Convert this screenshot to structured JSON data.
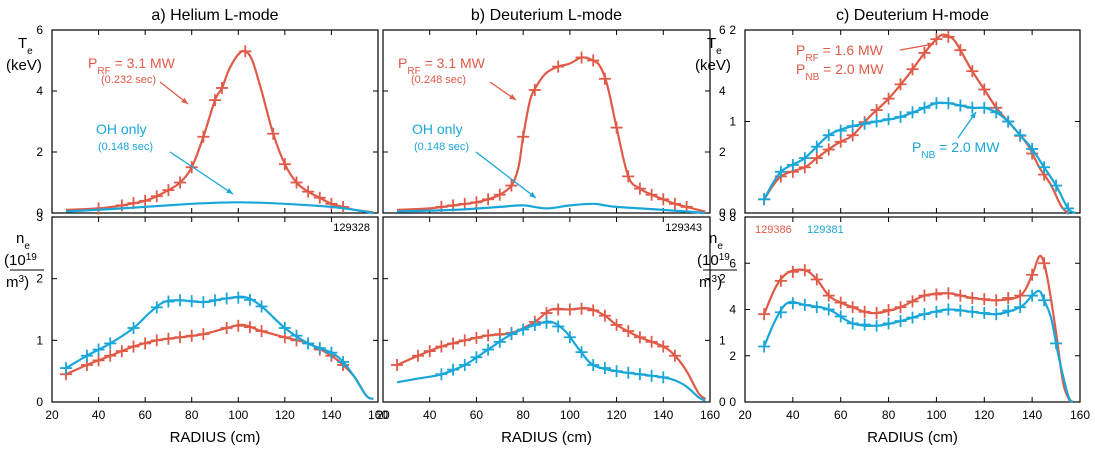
{
  "figure": {
    "xlabel": "RADIUS (cm)",
    "xticks": [
      "20",
      "40",
      "60",
      "80",
      "100",
      "120",
      "140",
      "160"
    ],
    "colors": {
      "red": "#e05a48",
      "blue": "#19a6d8",
      "axis": "#000000"
    }
  },
  "chart_data": [
    {
      "panel": "a-top",
      "type": "line",
      "title": "a)  Helium L-mode",
      "ylabel": [
        "T",
        "e",
        "(keV)"
      ],
      "xlim": [
        20,
        160
      ],
      "ylim": [
        0,
        6
      ],
      "yticks": [
        "0",
        "2",
        "4",
        "6"
      ],
      "annotations": {
        "rf": "P",
        "rf_sub": "RF",
        "rf_val": " = 3.1 MW",
        "rf_time": "(0.232 sec)",
        "oh": "OH only",
        "oh_time": "(0.148 sec)"
      },
      "series": [
        {
          "color": "red",
          "x": [
            26,
            40,
            50,
            60,
            65,
            70,
            75,
            80,
            85,
            90,
            93,
            96,
            100,
            103,
            106,
            110,
            115,
            120,
            125,
            130,
            135,
            140,
            145,
            150,
            155,
            158
          ],
          "y": [
            0.1,
            0.15,
            0.25,
            0.4,
            0.55,
            0.75,
            1.0,
            1.5,
            2.5,
            3.7,
            4.1,
            4.7,
            5.2,
            5.3,
            5.0,
            4.0,
            2.6,
            1.6,
            1.0,
            0.7,
            0.5,
            0.3,
            0.2,
            0.1,
            0.05,
            0.02
          ],
          "markers": [
            40,
            50,
            55,
            60,
            65,
            70,
            75,
            80,
            85,
            90,
            93,
            103,
            115,
            120,
            125,
            130,
            135,
            140,
            145
          ]
        },
        {
          "color": "blue",
          "x": [
            26,
            50,
            80,
            100,
            120,
            140,
            150,
            155,
            158
          ],
          "y": [
            0.05,
            0.15,
            0.3,
            0.35,
            0.3,
            0.2,
            0.1,
            0.04,
            0.0
          ],
          "markers": []
        }
      ]
    },
    {
      "panel": "a-bottom",
      "type": "line",
      "xlim": [
        20,
        160
      ],
      "ylim": [
        0,
        3
      ],
      "yticks": [
        "0",
        "1",
        "2",
        "3"
      ],
      "shot": "129328",
      "ylabel": [
        "n",
        "e",
        "(10",
        "19",
        "m",
        "3",
        ")"
      ],
      "series": [
        {
          "color": "red",
          "x": [
            26,
            35,
            45,
            55,
            65,
            75,
            85,
            95,
            102,
            110,
            120,
            130,
            140,
            145,
            150,
            155,
            158
          ],
          "y": [
            0.45,
            0.6,
            0.75,
            0.9,
            1.0,
            1.05,
            1.1,
            1.2,
            1.25,
            1.15,
            1.05,
            0.95,
            0.75,
            0.6,
            0.4,
            0.1,
            0.05
          ],
          "markers": [
            26,
            35,
            40,
            45,
            50,
            55,
            60,
            65,
            70,
            75,
            80,
            85,
            95,
            100,
            105,
            110,
            120,
            125,
            130,
            135,
            140,
            145
          ]
        },
        {
          "color": "blue",
          "x": [
            26,
            35,
            45,
            55,
            62,
            68,
            75,
            85,
            95,
            103,
            110,
            120,
            130,
            140,
            145,
            150,
            155,
            158
          ],
          "y": [
            0.55,
            0.75,
            0.95,
            1.2,
            1.45,
            1.62,
            1.65,
            1.62,
            1.68,
            1.7,
            1.55,
            1.2,
            0.95,
            0.8,
            0.65,
            0.4,
            0.1,
            0.05
          ],
          "markers": [
            26,
            35,
            40,
            45,
            55,
            65,
            70,
            75,
            80,
            85,
            90,
            95,
            100,
            105,
            110,
            120,
            125,
            130,
            135,
            140,
            145
          ]
        }
      ]
    },
    {
      "panel": "b-top",
      "type": "line",
      "title": "b)  Deuterium L-mode",
      "xlim": [
        20,
        160
      ],
      "ylim": [
        0,
        6
      ],
      "yticks": [
        "0",
        "2",
        "4",
        "6"
      ],
      "annotations": {
        "rf": "P",
        "rf_sub": "RF",
        "rf_val": " = 3.1 MW",
        "rf_time": "(0.248 sec)",
        "oh": "OH only",
        "oh_time": "(0.148 sec)"
      },
      "series": [
        {
          "color": "red",
          "x": [
            26,
            40,
            50,
            60,
            65,
            70,
            75,
            78,
            80,
            83,
            86,
            90,
            95,
            100,
            105,
            110,
            113,
            116,
            120,
            125,
            130,
            135,
            140,
            145,
            150,
            155,
            158
          ],
          "y": [
            0.1,
            0.15,
            0.25,
            0.35,
            0.45,
            0.6,
            0.9,
            1.5,
            2.5,
            3.7,
            4.2,
            4.6,
            4.8,
            4.9,
            5.1,
            5.0,
            4.8,
            4.2,
            2.8,
            1.2,
            0.8,
            0.6,
            0.45,
            0.3,
            0.2,
            0.1,
            0.05
          ],
          "markers": [
            45,
            50,
            55,
            60,
            65,
            70,
            75,
            80,
            85,
            95,
            105,
            110,
            115,
            120,
            125,
            130,
            135,
            140,
            145,
            150
          ]
        },
        {
          "color": "blue",
          "x": [
            26,
            50,
            70,
            80,
            90,
            100,
            110,
            115,
            120,
            130,
            140,
            150,
            155,
            158
          ],
          "y": [
            0.05,
            0.1,
            0.2,
            0.25,
            0.15,
            0.25,
            0.3,
            0.25,
            0.2,
            0.15,
            0.1,
            0.05,
            0.02,
            0.0
          ],
          "markers": []
        }
      ]
    },
    {
      "panel": "b-bottom",
      "type": "line",
      "xlim": [
        20,
        160
      ],
      "ylim": [
        0,
        3
      ],
      "yticks": [
        "0",
        "1",
        "2",
        "3"
      ],
      "shot": "129343",
      "series": [
        {
          "color": "red",
          "x": [
            26,
            35,
            45,
            55,
            65,
            75,
            85,
            92,
            100,
            108,
            115,
            120,
            130,
            140,
            145,
            150,
            155,
            158
          ],
          "y": [
            0.6,
            0.75,
            0.9,
            1.0,
            1.08,
            1.12,
            1.3,
            1.5,
            1.5,
            1.52,
            1.4,
            1.25,
            1.05,
            0.9,
            0.75,
            0.5,
            0.15,
            0.05
          ],
          "markers": [
            26,
            35,
            40,
            45,
            50,
            55,
            60,
            65,
            70,
            75,
            85,
            90,
            95,
            100,
            105,
            110,
            115,
            120,
            125,
            130,
            135,
            140,
            145
          ]
        },
        {
          "color": "blue",
          "x": [
            26,
            35,
            45,
            55,
            65,
            75,
            85,
            92,
            98,
            104,
            110,
            120,
            130,
            140,
            145,
            150,
            155,
            158
          ],
          "y": [
            0.32,
            0.38,
            0.45,
            0.6,
            0.85,
            1.1,
            1.25,
            1.3,
            1.15,
            0.85,
            0.6,
            0.5,
            0.45,
            0.4,
            0.35,
            0.25,
            0.08,
            0.02
          ],
          "markers": [
            45,
            50,
            55,
            60,
            65,
            70,
            75,
            80,
            85,
            90,
            95,
            100,
            105,
            110,
            115,
            120,
            125,
            130,
            135,
            140
          ]
        }
      ]
    },
    {
      "panel": "c-top",
      "type": "line",
      "title": "c)  Deuterium H-mode",
      "ylabel": [
        "T",
        "e",
        "(keV)"
      ],
      "xlim": [
        20,
        160
      ],
      "ylim": [
        0,
        2
      ],
      "yticks": [
        "0",
        "1",
        "2"
      ],
      "annotations": {
        "rf": "P",
        "rf_sub": "RF",
        "rf_val": " = 1.6 MW",
        "nb": "P",
        "nb_sub": "NB",
        "nb_val": " = 2.0 MW",
        "blue_nb": "P",
        "blue_nb_sub": "NB",
        "blue_nb_val": " = 2.0 MW"
      },
      "series": [
        {
          "color": "red",
          "x": [
            28,
            35,
            45,
            50,
            58,
            65,
            72,
            80,
            88,
            95,
            100,
            103,
            107,
            110,
            115,
            120,
            125,
            130,
            138,
            143,
            148,
            152,
            155
          ],
          "y": [
            0.15,
            0.4,
            0.5,
            0.6,
            0.75,
            0.85,
            1.05,
            1.25,
            1.5,
            1.75,
            1.9,
            1.95,
            1.9,
            1.78,
            1.55,
            1.35,
            1.15,
            1.0,
            0.75,
            0.5,
            0.3,
            0.08,
            0.0
          ],
          "markers": [
            28,
            35,
            40,
            45,
            50,
            55,
            60,
            65,
            70,
            75,
            80,
            85,
            90,
            95,
            100,
            105,
            110,
            115,
            120,
            125,
            130,
            135,
            140,
            145
          ]
        },
        {
          "color": "blue",
          "x": [
            28,
            35,
            45,
            55,
            65,
            75,
            85,
            95,
            100,
            105,
            115,
            120,
            125,
            130,
            135,
            140,
            145,
            150,
            155,
            158
          ],
          "y": [
            0.15,
            0.45,
            0.6,
            0.85,
            0.95,
            1.0,
            1.05,
            1.15,
            1.2,
            1.2,
            1.15,
            1.15,
            1.1,
            1.0,
            0.85,
            0.7,
            0.5,
            0.3,
            0.05,
            0.0
          ],
          "markers": [
            28,
            35,
            40,
            45,
            50,
            55,
            60,
            65,
            70,
            75,
            80,
            85,
            90,
            95,
            100,
            105,
            110,
            115,
            120,
            125,
            130,
            135,
            140,
            145,
            150,
            155
          ]
        }
      ]
    },
    {
      "panel": "c-bottom",
      "type": "line",
      "xlim": [
        20,
        160
      ],
      "ylim": [
        0,
        8
      ],
      "yticks": [
        "0",
        "2",
        "4",
        "6",
        "8"
      ],
      "shot_red": "129386",
      "shot_blue": "129381",
      "ylabel": [
        "n",
        "e",
        "(10",
        "19",
        "m",
        "3",
        ")"
      ],
      "series": [
        {
          "color": "red",
          "x": [
            28,
            33,
            38,
            45,
            50,
            55,
            60,
            65,
            70,
            75,
            85,
            95,
            105,
            115,
            125,
            135,
            140,
            143,
            145,
            147,
            150,
            153,
            156
          ],
          "y": [
            3.8,
            5.0,
            5.6,
            5.7,
            5.3,
            4.6,
            4.3,
            4.1,
            3.9,
            3.85,
            4.1,
            4.6,
            4.7,
            4.5,
            4.4,
            4.6,
            5.5,
            6.3,
            6.0,
            5.0,
            3.0,
            0.8,
            0.0
          ],
          "markers": [
            28,
            35,
            40,
            45,
            50,
            55,
            60,
            65,
            70,
            75,
            80,
            85,
            90,
            95,
            100,
            105,
            110,
            115,
            120,
            125,
            130,
            135,
            140,
            145
          ]
        },
        {
          "color": "blue",
          "x": [
            28,
            33,
            38,
            45,
            55,
            65,
            75,
            85,
            95,
            105,
            115,
            125,
            135,
            140,
            143,
            145,
            148,
            151,
            155,
            157
          ],
          "y": [
            2.4,
            3.6,
            4.3,
            4.2,
            4.0,
            3.4,
            3.3,
            3.5,
            3.8,
            4.0,
            3.9,
            3.8,
            4.1,
            4.6,
            4.8,
            4.4,
            3.6,
            2.0,
            0.3,
            0.0
          ],
          "markers": [
            28,
            35,
            40,
            45,
            50,
            55,
            60,
            65,
            70,
            75,
            80,
            85,
            90,
            95,
            100,
            105,
            110,
            115,
            120,
            125,
            130,
            135,
            140,
            145,
            150
          ]
        }
      ]
    }
  ]
}
